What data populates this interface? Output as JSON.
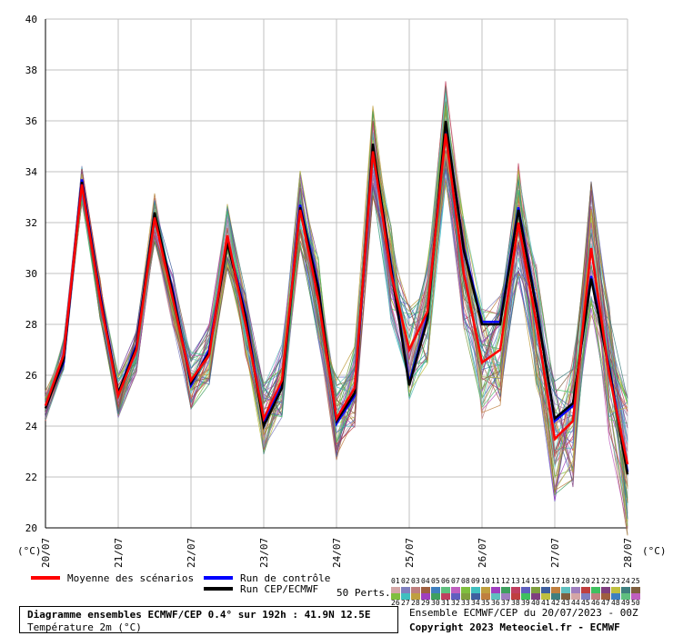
{
  "chart_data": {
    "type": "line",
    "yunit": "(°C)",
    "ylim": [
      20,
      40
    ],
    "yticks": [
      "20",
      "22",
      "24",
      "26",
      "28",
      "30",
      "32",
      "34",
      "36",
      "38",
      "40"
    ],
    "xticks": [
      "20/07",
      "21/07",
      "22/07",
      "23/07",
      "24/07",
      "25/07",
      "26/07",
      "27/07",
      "28/07"
    ],
    "grid": true,
    "series": [
      {
        "name": "Moyenne des scénarios",
        "color": "#ff0000",
        "values": [
          24.8,
          26.8,
          33.5,
          29.0,
          25.2,
          27.0,
          32.2,
          29.0,
          25.8,
          26.8,
          31.5,
          28.0,
          24.3,
          25.8,
          32.5,
          29.0,
          24.3,
          25.5,
          34.8,
          30.0,
          27.0,
          28.5,
          35.5,
          30.0,
          26.5,
          27.0,
          32.0,
          28.0,
          23.5,
          24.2,
          31.0,
          26.0,
          22.5
        ]
      },
      {
        "name": "Run de contrôle",
        "color": "#0000ff",
        "values": [
          24.8,
          26.5,
          33.7,
          29.2,
          25.3,
          27.2,
          32.3,
          29.3,
          25.6,
          27.0,
          31.3,
          28.4,
          24.1,
          25.6,
          32.7,
          29.5,
          24.1,
          25.2,
          35.0,
          30.3,
          25.7,
          28.3,
          35.9,
          31.0,
          28.1,
          28.1,
          32.6,
          28.7,
          24.2,
          24.8,
          29.9,
          26.3,
          22.2
        ]
      },
      {
        "name": "Run CEP/ECMWF",
        "color": "#000000",
        "values": [
          24.7,
          26.6,
          33.6,
          29.1,
          25.3,
          27.1,
          32.4,
          29.2,
          25.7,
          26.9,
          31.2,
          28.3,
          24.0,
          25.5,
          32.6,
          29.4,
          24.2,
          25.3,
          35.1,
          30.2,
          25.6,
          28.2,
          36.0,
          30.9,
          28.0,
          28.0,
          32.5,
          28.6,
          24.3,
          24.9,
          29.8,
          26.2,
          22.1
        ]
      }
    ],
    "legend": {
      "placement": "bottom",
      "mean_label": "Moyenne des scénarios",
      "control_label": "Run de contrôle",
      "cep_label": "Run CEP/ECMWF",
      "perts_label": "50 Perts."
    },
    "members_top": [
      "01",
      "02",
      "03",
      "04",
      "05",
      "06",
      "07",
      "08",
      "09",
      "10",
      "11",
      "12",
      "13",
      "14",
      "15",
      "16",
      "17",
      "18",
      "19",
      "20",
      "21",
      "22",
      "23",
      "24",
      "25"
    ],
    "members_bottom": [
      "26",
      "27",
      "28",
      "29",
      "30",
      "31",
      "32",
      "33",
      "34",
      "35",
      "36",
      "37",
      "38",
      "39",
      "40",
      "41",
      "42",
      "43",
      "44",
      "45",
      "46",
      "47",
      "48",
      "49",
      "50"
    ],
    "member_colors": [
      "#d4a6a6",
      "#7f7fbf",
      "#bf7f7f",
      "#9f5f3f",
      "#3f7fbf",
      "#5fbf7f",
      "#bf5fbf",
      "#7fbf3f",
      "#3fbfbf",
      "#bf9f3f",
      "#9f3fbf",
      "#3f9f5f",
      "#bf3f5f",
      "#5f5fbf",
      "#7f9f3f",
      "#3f5f9f",
      "#bf7f3f",
      "#5fbfbf",
      "#9f7fbf",
      "#bf3f3f",
      "#3fbf5f",
      "#7f3f7f",
      "#bfbf3f",
      "#3f7f7f",
      "#7f5f3f"
    ],
    "title": "Diagramme ensembles ECMWF/CEP 0.4° sur 192h : 41.9N 12.5E",
    "subtitle": "Température 2m (°C)",
    "ensemble_info": "Ensemble ECMWF/CEP du 20/07/2023 - 00Z",
    "copyright": "Copyright 2023 Meteociel.fr - ECMWF"
  }
}
